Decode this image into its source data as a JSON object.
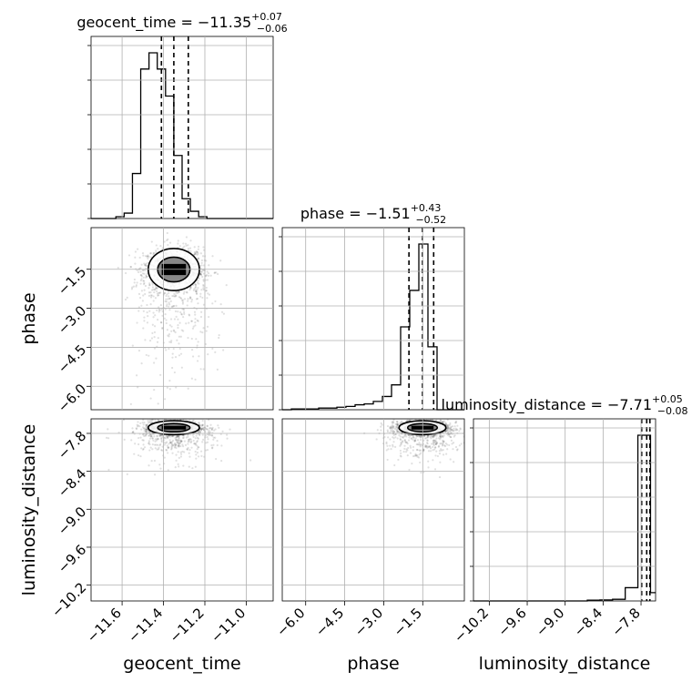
{
  "chart_data": {
    "type": "corner",
    "parameters": [
      "geocent_time",
      "phase",
      "luminosity_distance"
    ],
    "titles": {
      "geocent_time": {
        "label": "geocent_time",
        "median": "−11.35",
        "upper": "+0.07",
        "lower": "−0.06"
      },
      "phase": {
        "label": "phase",
        "median": "−1.51",
        "upper": "+0.43",
        "lower": "−0.52"
      },
      "luminosity_distance": {
        "label": "luminosity_distance",
        "median": "−7.71",
        "upper": "+0.05",
        "lower": "−0.08"
      }
    },
    "axis_labels": {
      "x": [
        "geocent_time",
        "phase",
        "luminosity_distance"
      ],
      "y": [
        "phase",
        "luminosity_distance"
      ]
    },
    "ranges": {
      "geocent_time": [
        -11.75,
        -10.87
      ],
      "phase": [
        -6.9,
        0.1
      ],
      "luminosity_distance": [
        -10.45,
        -7.57
      ]
    },
    "ticks": {
      "geocent_time": [
        -11.6,
        -11.4,
        -11.2,
        -11.0
      ],
      "phase": [
        -6.0,
        -4.5,
        -3.0,
        -1.5
      ],
      "luminosity_distance": [
        -10.2,
        -9.6,
        -9.0,
        -8.4,
        -7.8
      ]
    },
    "tick_labels": {
      "geocent_time": [
        "−11.6",
        "−11.4",
        "−11.2",
        "−11.0"
      ],
      "phase": [
        "−6.0",
        "−4.5",
        "−3.0",
        "−1.5"
      ],
      "luminosity_distance": [
        "−10.2",
        "−9.6",
        "−9.0",
        "−8.4",
        "−7.8"
      ]
    },
    "quantiles": {
      "geocent_time": [
        -11.41,
        -11.35,
        -11.28
      ],
      "phase": [
        -2.03,
        -1.51,
        -1.08
      ],
      "luminosity_distance": [
        -7.79,
        -7.71,
        -7.66
      ]
    },
    "histograms": {
      "geocent_time": {
        "edges": [
          -11.75,
          -11.71,
          -11.67,
          -11.63,
          -11.59,
          -11.55,
          -11.51,
          -11.47,
          -11.43,
          -11.39,
          -11.35,
          -11.31,
          -11.27,
          -11.23,
          -11.19,
          -11.15,
          -11.11,
          -11.07,
          -11.03,
          -10.99,
          -10.95,
          -10.91,
          -10.87
        ],
        "counts": [
          0,
          0,
          0,
          1,
          3,
          25,
          83,
          92,
          83,
          68,
          35,
          11,
          4,
          1,
          0,
          0,
          0,
          0,
          0,
          0,
          0,
          0
        ]
      },
      "phase": {
        "edges": [
          -6.9,
          -6.55,
          -6.2,
          -5.85,
          -5.5,
          -5.15,
          -4.8,
          -4.45,
          -4.1,
          -3.75,
          -3.4,
          -3.05,
          -2.7,
          -2.35,
          -2.0,
          -1.65,
          -1.3,
          -0.95,
          -0.6,
          -0.25,
          0.1
        ],
        "counts": [
          0,
          0.5,
          0.5,
          0.5,
          1,
          1,
          1.5,
          2,
          3,
          3.5,
          5,
          8,
          15,
          50,
          72,
          100,
          38,
          0,
          0,
          0
        ]
      },
      "luminosity_distance": {
        "edges": [
          -10.45,
          -10.25,
          -10.05,
          -9.85,
          -9.65,
          -9.45,
          -9.25,
          -9.05,
          -8.85,
          -8.65,
          -8.45,
          -8.25,
          -8.05,
          -7.85,
          -7.65,
          -7.57
        ],
        "counts": [
          0,
          0,
          0,
          0,
          0,
          0,
          0,
          0,
          0,
          0.5,
          0.6,
          1,
          8,
          100,
          5
        ]
      }
    },
    "grid": true
  }
}
